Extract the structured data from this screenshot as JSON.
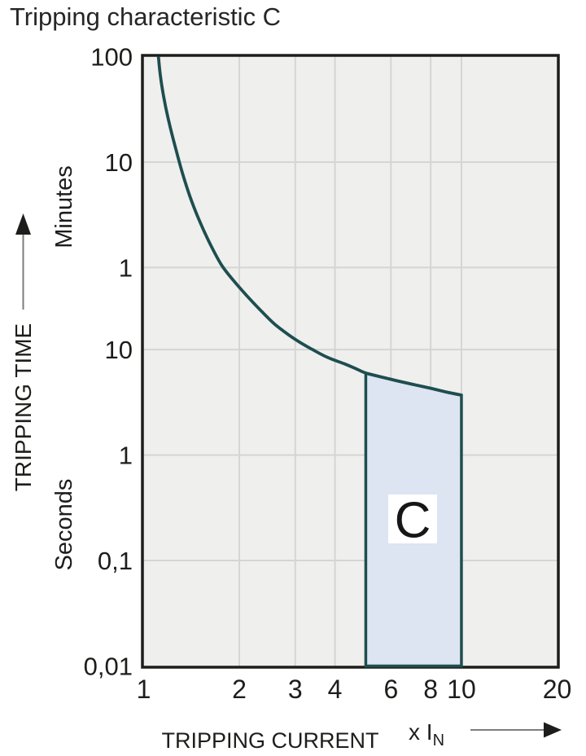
{
  "title": "Tripping characteristic C",
  "colors": {
    "page_bg": "#ffffff",
    "plot_bg": "#efefed",
    "grid": "#d5d5d3",
    "frame": "#1d1d1b",
    "curve": "#1e4e4f",
    "region_fill": "#dde4f2",
    "region_label_bg": "#ffffff",
    "text": "#1d1d1b",
    "arrow_line": "#7d7d7d",
    "arrow_head": "#1d1d1b"
  },
  "chart_data": {
    "type": "line",
    "title": "Tripping characteristic C",
    "x_axis": {
      "label": "TRIPPING CURRENT",
      "unit_label": "x I",
      "unit_subscript": "N",
      "scale": "log",
      "min": 1,
      "max": 20,
      "ticks": [
        {
          "label": "1",
          "value": 1
        },
        {
          "label": "2",
          "value": 2
        },
        {
          "label": "3",
          "value": 3
        },
        {
          "label": "4",
          "value": 4
        },
        {
          "label": "6",
          "value": 6
        },
        {
          "label": "8",
          "value": 8
        },
        {
          "label": "10",
          "value": 10
        },
        {
          "label": "20",
          "value": 20
        }
      ],
      "gridline_values": [
        2,
        3,
        4,
        6,
        8,
        10
      ]
    },
    "y_axis": {
      "label": "TRIPPING TIME",
      "scale": "log",
      "min_seconds": 0.01,
      "max_seconds": 6000,
      "ticks": [
        {
          "label": "100",
          "seconds": 6000
        },
        {
          "label": "10",
          "seconds": 600
        },
        {
          "label": "1",
          "seconds": 60
        },
        {
          "label": "10",
          "seconds": 10
        },
        {
          "label": "1",
          "seconds": 1
        },
        {
          "label": "0,1",
          "seconds": 0.1
        },
        {
          "label": "0,01",
          "seconds": 0.01
        }
      ],
      "gridline_seconds": [
        600,
        60,
        10,
        1,
        0.1
      ],
      "unit_groups": [
        {
          "label": "Minutes",
          "anchor_seconds": 227
        },
        {
          "label": "Seconds",
          "anchor_seconds": 0.22
        }
      ]
    },
    "series": [
      {
        "name": "thermal-tripping-curve",
        "points": [
          [
            1.113,
            6000
          ],
          [
            1.125,
            4300
          ],
          [
            1.145,
            2950
          ],
          [
            1.175,
            1950
          ],
          [
            1.215,
            1250
          ],
          [
            1.265,
            780
          ],
          [
            1.325,
            470
          ],
          [
            1.4,
            280
          ],
          [
            1.5,
            165
          ],
          [
            1.62,
            100
          ],
          [
            1.76,
            63
          ],
          [
            1.92,
            45
          ],
          [
            2.1,
            33
          ],
          [
            2.32,
            24
          ],
          [
            2.58,
            17.5
          ],
          [
            2.88,
            13.6
          ],
          [
            3.15,
            11.4
          ],
          [
            3.4,
            10.0
          ],
          [
            3.8,
            8.4
          ],
          [
            4.3,
            7.3
          ],
          [
            4.65,
            6.6
          ],
          [
            5.0,
            6.0
          ],
          [
            5.6,
            5.5
          ],
          [
            6.3,
            5.05
          ],
          [
            7.1,
            4.65
          ],
          [
            8.0,
            4.3
          ],
          [
            9.0,
            3.95
          ],
          [
            10.0,
            3.7
          ]
        ]
      }
    ],
    "region": {
      "label": "C",
      "x_start": 5,
      "x_end": 10,
      "bottom_seconds": 0.01,
      "top_follows_curve": true
    }
  }
}
